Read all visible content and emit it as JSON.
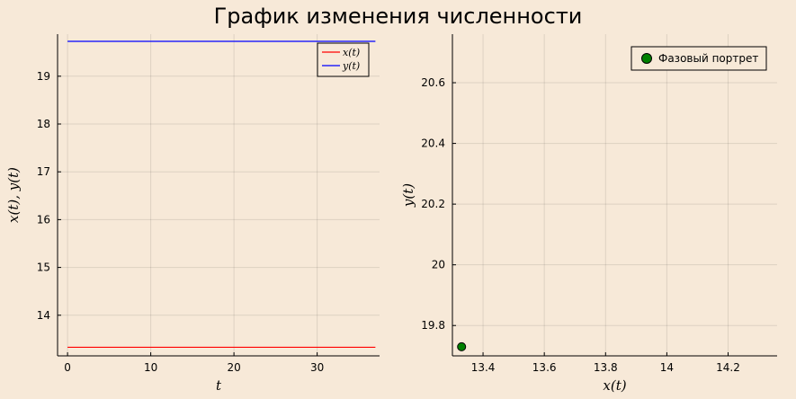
{
  "title": "График изменения численности",
  "chart_data": [
    {
      "type": "line",
      "xlabel": "t",
      "ylabel": "x(t), y(t)",
      "xlim": [
        -1.2,
        37.5
      ],
      "ylim": [
        13.15,
        19.88
      ],
      "xticks": [
        0,
        10,
        20,
        30
      ],
      "yticks": [
        14,
        15,
        16,
        17,
        18,
        19
      ],
      "x": [
        0,
        37
      ],
      "grid": true,
      "legend_position": "top-right",
      "series": [
        {
          "name": "x(t)",
          "color": "#ff0000",
          "values": [
            13.33,
            13.33
          ]
        },
        {
          "name": "y(t)",
          "color": "#0000ff",
          "values": [
            19.73,
            19.73
          ]
        }
      ]
    },
    {
      "type": "scatter",
      "xlabel": "x(t)",
      "ylabel": "y(t)",
      "xlim": [
        13.3,
        14.36
      ],
      "ylim": [
        19.7,
        20.76
      ],
      "xticks": [
        13.4,
        13.6,
        13.8,
        14.0,
        14.2
      ],
      "yticks": [
        19.8,
        20.0,
        20.2,
        20.4,
        20.6
      ],
      "grid": true,
      "legend_position": "top-right",
      "series": [
        {
          "name": "Фазовый портрет",
          "color": "#008000",
          "points": [
            [
              13.33,
              19.73
            ]
          ]
        }
      ]
    }
  ]
}
